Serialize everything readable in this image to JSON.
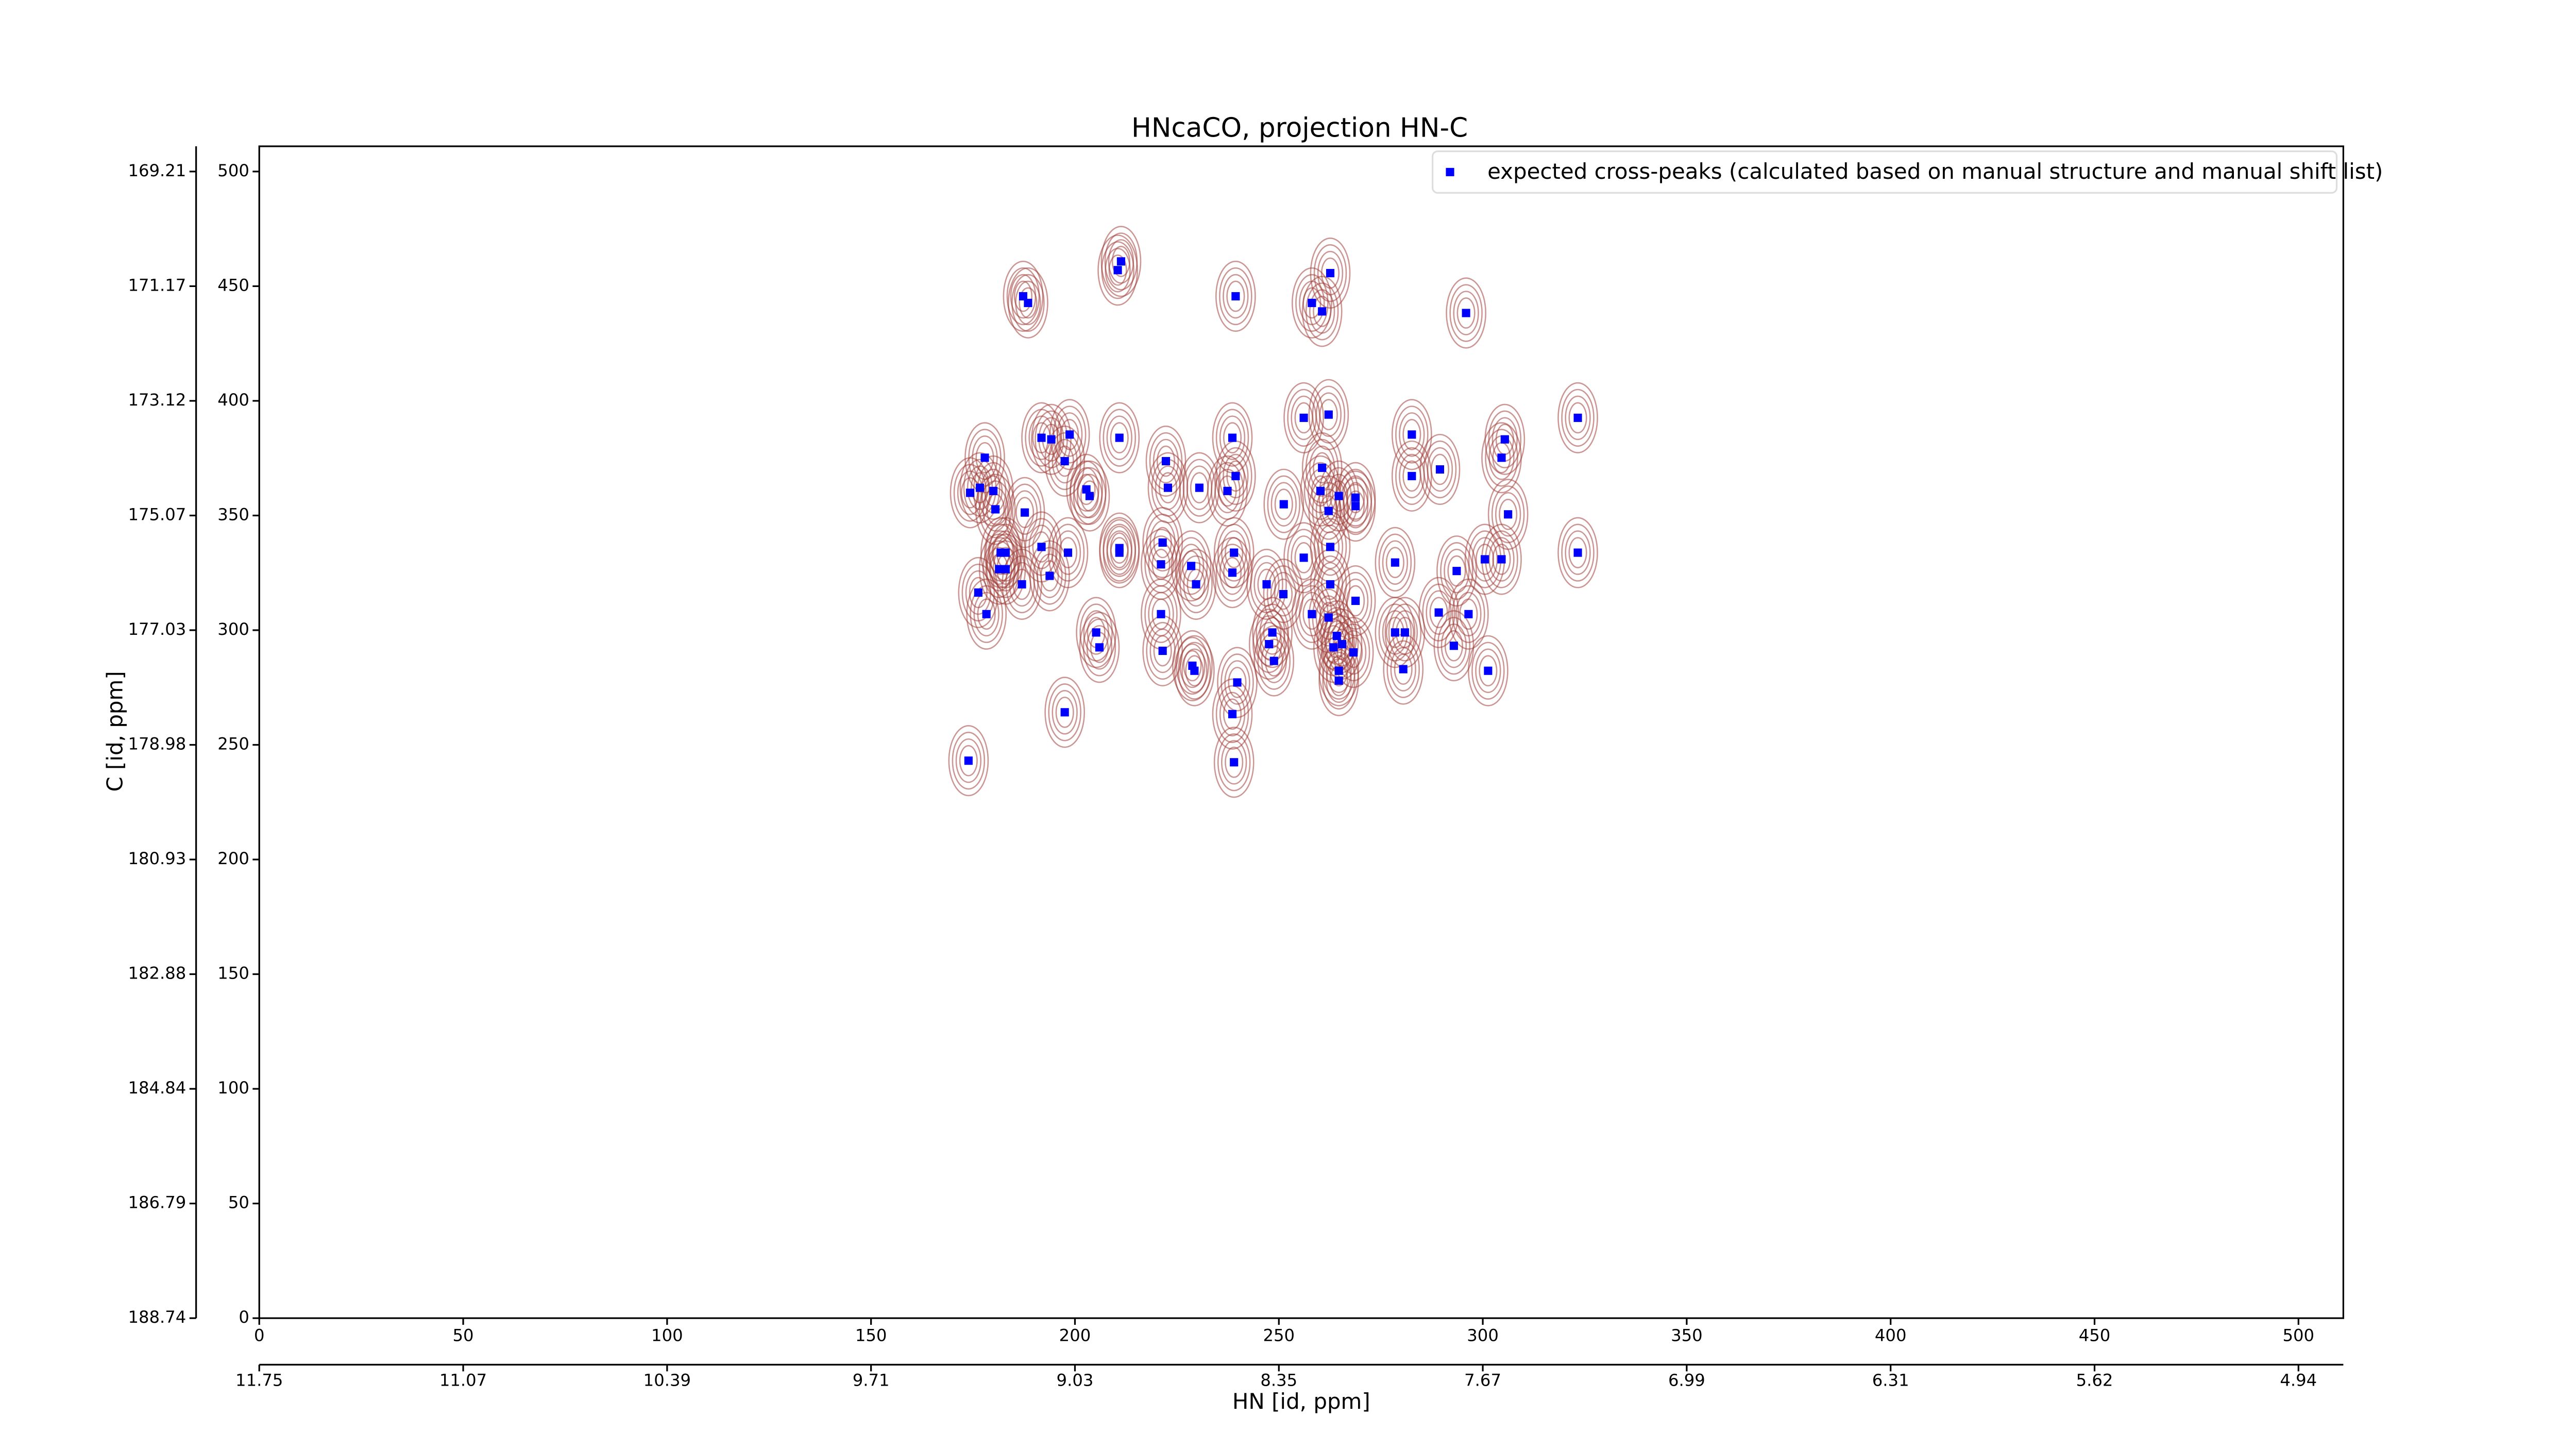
{
  "chart_data": {
    "type": "scatter",
    "title": "HNcaCO, projection HN-C",
    "xlabel": "HN [id, ppm]",
    "ylabel": "C [id, ppm]",
    "legend": "upper right",
    "contour_color": "#a0403a",
    "series": [
      {
        "name": "expected cross-peaks (calculated based on manual structure and manual shift list)",
        "color": "#0000ff",
        "x": [
          187.3,
          188.5,
          210.5,
          211.3,
          239.4,
          258.1,
          260.6,
          262.6,
          295.9,
          323.3,
          210.9,
          177.9,
          191.8,
          194.2,
          198.7,
          197.5,
          222.3,
          238.6,
          239.4,
          230.5,
          222.8,
          256.1,
          262.2,
          282.6,
          282.6,
          289.5,
          305.4,
          304.6,
          174.3,
          176.7,
          180.0,
          180.5,
          187.7,
          202.8,
          203.6,
          251.2,
          260.6,
          260.2,
          262.2,
          264.7,
          268.8,
          268.8,
          306.2,
          237.4,
          210.9,
          210.9,
          221.5,
          221.1,
          228.5,
          239.0,
          238.6,
          262.6,
          256.1,
          191.8,
          198.3,
          181.8,
          183.0,
          181.4,
          183.0,
          193.8,
          187.0,
          176.3,
          178.3,
          229.7,
          247.0,
          251.1,
          262.6,
          268.8,
          278.5,
          293.6,
          300.5,
          304.6,
          323.3,
          221.1,
          258.1,
          262.2,
          289.2,
          296.5,
          248.4,
          247.6,
          248.8,
          278.5,
          280.9,
          264.2,
          265.5,
          263.4,
          268.3,
          205.2,
          206.0,
          221.5,
          228.8,
          229.3,
          264.7,
          264.7,
          280.5,
          292.9,
          301.3,
          239.8,
          238.6,
          197.5,
          173.9,
          239.0
        ],
        "y": [
          445.6,
          442.7,
          457.0,
          460.8,
          445.6,
          442.7,
          439.0,
          455.7,
          438.3,
          392.6,
          383.9,
          375.2,
          383.9,
          383.2,
          385.3,
          373.7,
          373.7,
          383.9,
          367.2,
          362.1,
          362.1,
          392.6,
          394.0,
          385.3,
          367.2,
          370.1,
          383.2,
          375.2,
          359.9,
          362.1,
          360.7,
          352.7,
          351.3,
          361.4,
          358.5,
          354.9,
          370.8,
          360.7,
          352.0,
          358.5,
          357.8,
          354.1,
          350.5,
          360.7,
          335.8,
          333.8,
          338.2,
          328.7,
          328.0,
          333.8,
          325.1,
          336.3,
          331.6,
          336.3,
          333.8,
          333.8,
          333.8,
          326.6,
          326.6,
          323.7,
          320.0,
          316.4,
          307.0,
          320.0,
          320.0,
          315.7,
          320.0,
          312.8,
          329.5,
          325.8,
          330.9,
          330.9,
          333.8,
          307.0,
          307.0,
          305.5,
          307.7,
          307.0,
          299.0,
          293.9,
          286.6,
          299.0,
          299.0,
          297.5,
          293.9,
          292.5,
          290.3,
          299.0,
          292.5,
          291.0,
          284.5,
          282.3,
          282.3,
          278.0,
          283.0,
          293.2,
          282.3,
          277.2,
          263.4,
          264.2,
          243.1,
          242.4
        ]
      }
    ],
    "xlim": [
      0,
      511
    ],
    "ylim": [
      0,
      511
    ],
    "xticks": [
      0,
      50,
      100,
      150,
      200,
      250,
      300,
      350,
      400,
      450,
      500
    ],
    "yticks": [
      0,
      50,
      100,
      150,
      200,
      250,
      300,
      350,
      400,
      450,
      500
    ],
    "x2ticks": [
      {
        "value": 0,
        "label": "11.75"
      },
      {
        "value": 50,
        "label": "11.07"
      },
      {
        "value": 100,
        "label": "10.39"
      },
      {
        "value": 150,
        "label": "9.71"
      },
      {
        "value": 200,
        "label": "9.03"
      },
      {
        "value": 250,
        "label": "8.35"
      },
      {
        "value": 300,
        "label": "7.67"
      },
      {
        "value": 350,
        "label": "6.99"
      },
      {
        "value": 400,
        "label": "6.31"
      },
      {
        "value": 450,
        "label": "5.62"
      },
      {
        "value": 500,
        "label": "4.94"
      }
    ],
    "y2ticks": [
      {
        "value": 0,
        "label": "188.74"
      },
      {
        "value": 50,
        "label": "186.79"
      },
      {
        "value": 100,
        "label": "184.84"
      },
      {
        "value": 150,
        "label": "182.88"
      },
      {
        "value": 200,
        "label": "180.93"
      },
      {
        "value": 250,
        "label": "178.98"
      },
      {
        "value": 300,
        "label": "177.03"
      },
      {
        "value": 350,
        "label": "175.07"
      },
      {
        "value": 400,
        "label": "173.12"
      },
      {
        "value": 450,
        "label": "171.17"
      },
      {
        "value": 500,
        "label": "169.21"
      }
    ]
  }
}
